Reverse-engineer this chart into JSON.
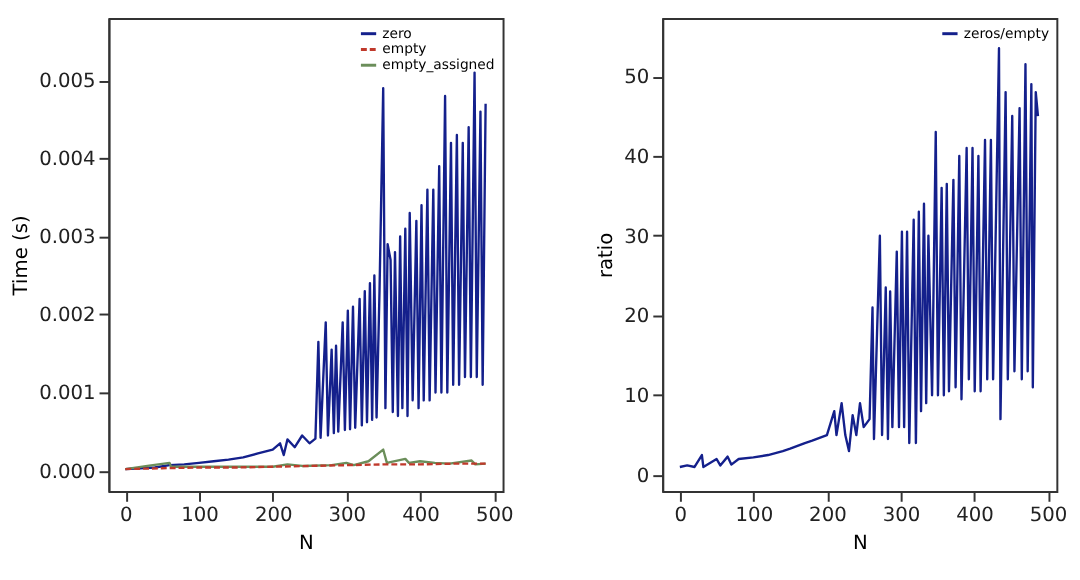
{
  "chart_data": [
    {
      "type": "line",
      "xlabel": "N",
      "ylabel": "Time (s)",
      "xlim": [
        -23,
        512
      ],
      "ylim": [
        -0.00026,
        0.0058
      ],
      "xticks": [
        0,
        100,
        200,
        300,
        400,
        500
      ],
      "yticks": [
        {
          "value": 0,
          "label": "0.000"
        },
        {
          "value": 0.001,
          "label": "0.001"
        },
        {
          "value": 0.002,
          "label": "0.002"
        },
        {
          "value": 0.003,
          "label": "0.003"
        },
        {
          "value": 0.004,
          "label": "0.004"
        },
        {
          "value": 0.005,
          "label": "0.005"
        }
      ],
      "grid": false,
      "legend": "top right",
      "series": [
        {
          "name": "zero",
          "color": "#14208c",
          "line_style": "solid",
          "x": [
            0,
            20,
            40,
            60,
            80,
            100,
            120,
            140,
            160,
            180,
            200,
            210,
            215,
            220,
            230,
            240,
            250,
            258,
            262,
            265,
            272,
            275,
            280,
            283,
            286,
            289,
            295,
            298,
            302,
            305,
            309,
            312,
            318,
            321,
            325,
            328,
            332,
            335,
            338,
            341,
            345,
            350,
            353,
            356,
            360,
            363,
            366,
            370,
            373,
            376,
            380,
            383,
            386,
            390,
            395,
            398,
            402,
            405,
            410,
            413,
            418,
            421,
            426,
            429,
            434,
            437,
            442,
            445,
            450,
            453,
            458,
            461,
            466,
            469,
            474,
            477,
            482,
            485,
            489
          ],
          "values": [
            2e-05,
            3e-05,
            4e-05,
            7e-05,
            8e-05,
            0.0001,
            0.00012,
            0.00014,
            0.00017,
            0.00022,
            0.00027,
            0.00035,
            0.0002,
            0.0004,
            0.0003,
            0.00045,
            0.00035,
            0.00041,
            0.00165,
            0.00042,
            0.0019,
            0.00045,
            0.00155,
            0.00048,
            0.0016,
            0.0005,
            0.0019,
            0.00052,
            0.00205,
            0.00053,
            0.0021,
            0.00055,
            0.0022,
            0.00058,
            0.0023,
            0.00062,
            0.0024,
            0.00065,
            0.0025,
            0.00068,
            0.0023,
            0.0049,
            0.0008,
            0.0029,
            0.0027,
            0.00075,
            0.0028,
            0.0007,
            0.003,
            0.0008,
            0.0031,
            0.0007,
            0.0033,
            0.0009,
            0.0032,
            0.0008,
            0.0034,
            0.0009,
            0.0036,
            0.0009,
            0.0036,
            0.001,
            0.0039,
            0.001,
            0.0048,
            0.001,
            0.0042,
            0.0011,
            0.0043,
            0.0011,
            0.0042,
            0.0012,
            0.0044,
            0.0012,
            0.0051,
            0.0012,
            0.0046,
            0.0011,
            0.0047
          ]
        },
        {
          "name": "empty",
          "color": "#c0392b",
          "line_style": "dashed",
          "x": [
            0,
            50,
            100,
            150,
            200,
            250,
            300,
            350,
            400,
            450,
            489
          ],
          "values": [
            2e-05,
            3e-05,
            4e-05,
            4e-05,
            5e-05,
            6e-05,
            7e-05,
            8e-05,
            8e-05,
            9e-05,
            9e-05
          ]
        },
        {
          "name": "empty_assigned",
          "color": "#6b8e5a",
          "line_style": "solid",
          "x": [
            0,
            30,
            60,
            62,
            100,
            150,
            200,
            220,
            240,
            280,
            300,
            310,
            330,
            350,
            355,
            380,
            385,
            400,
            420,
            440,
            470,
            475,
            489
          ],
          "values": [
            2e-05,
            6e-05,
            0.0001,
            5e-05,
            5e-05,
            5e-05,
            5e-05,
            8e-05,
            6e-05,
            7e-05,
            0.0001,
            7e-05,
            0.00012,
            0.00027,
            0.0001,
            0.00015,
            0.0001,
            0.00012,
            0.0001,
            9e-05,
            0.00013,
            8e-05,
            9e-05
          ]
        }
      ]
    },
    {
      "type": "line",
      "xlabel": "N",
      "ylabel": "ratio",
      "xlim": [
        -24,
        512
      ],
      "ylim": [
        -2,
        57.3
      ],
      "xticks": [
        0,
        100,
        200,
        300,
        400,
        500
      ],
      "yticks": [
        0,
        10,
        20,
        30,
        40,
        50
      ],
      "grid": false,
      "legend": "top right",
      "series": [
        {
          "name": "zeros/empty",
          "color": "#14208c",
          "line_style": "solid",
          "x": [
            0,
            10,
            20,
            30,
            32,
            50,
            55,
            65,
            70,
            80,
            100,
            120,
            140,
            150,
            170,
            180,
            200,
            205,
            210,
            213,
            220,
            225,
            230,
            235,
            240,
            245,
            250,
            258,
            262,
            264,
            272,
            275,
            280,
            283,
            286,
            289,
            295,
            298,
            302,
            305,
            309,
            312,
            318,
            321,
            325,
            328,
            332,
            335,
            338,
            343,
            348,
            351,
            356,
            359,
            363,
            366,
            372,
            375,
            380,
            383,
            390,
            393,
            398,
            401,
            406,
            409,
            415,
            418,
            423,
            426,
            434,
            436,
            443,
            446,
            452,
            455,
            462,
            465,
            470,
            473,
            478,
            480,
            484,
            487
          ],
          "values": [
            1,
            1.2,
            1,
            2.5,
            1,
            2,
            1.2,
            2.3,
            1.3,
            2,
            2.2,
            2.5,
            3,
            3.3,
            4,
            4.3,
            5,
            6.5,
            8,
            5,
            9,
            5,
            3,
            7.5,
            5,
            9,
            6,
            7,
            21,
            4.5,
            30,
            5,
            23.5,
            4.5,
            23,
            6,
            28,
            6,
            30.5,
            6,
            30.5,
            4,
            32,
            4,
            33,
            8,
            34,
            9,
            30,
            10,
            43,
            10,
            36,
            10,
            36.5,
            10.5,
            37,
            11,
            40,
            9.5,
            41,
            12,
            41,
            10.5,
            40,
            10.5,
            42,
            12,
            42,
            12,
            53.5,
            7,
            48,
            12,
            45,
            13,
            46,
            12,
            51.5,
            13,
            49,
            11,
            48,
            45
          ]
        }
      ]
    }
  ]
}
